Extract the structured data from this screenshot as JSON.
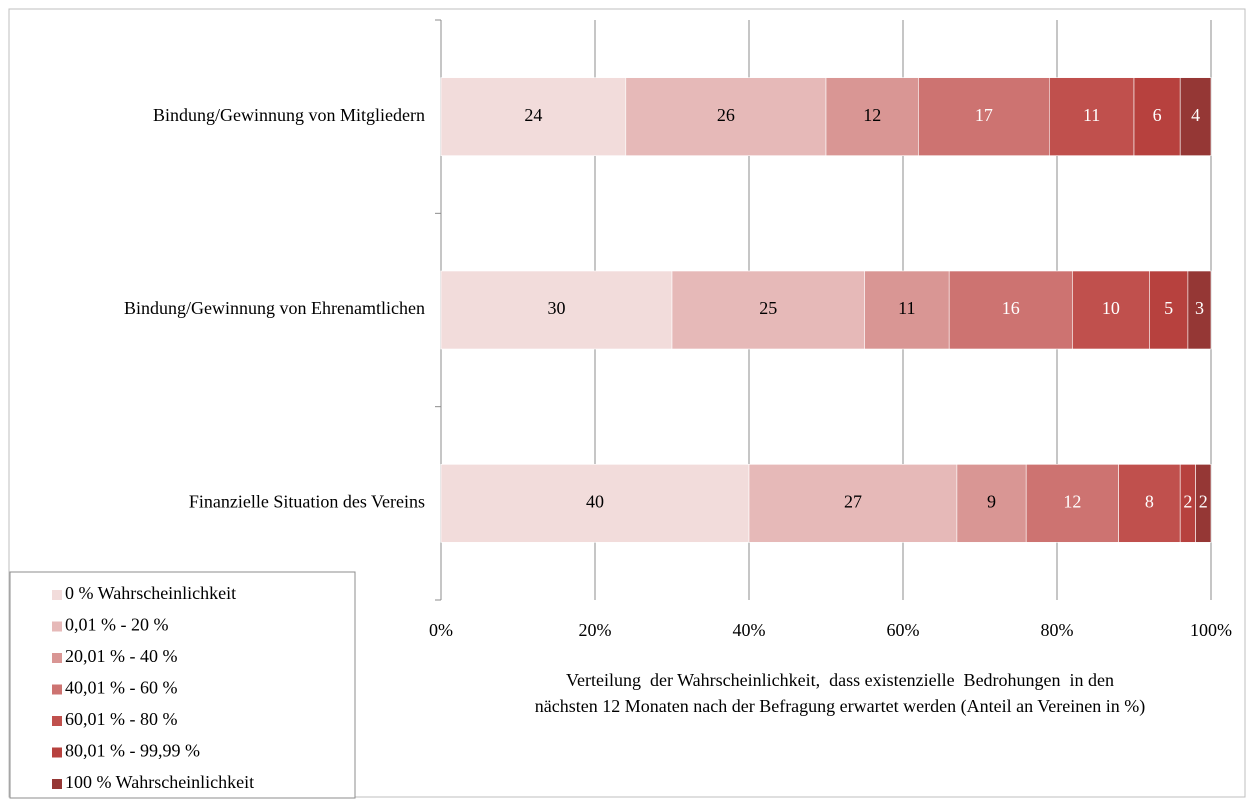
{
  "chart_data": {
    "type": "stacked_barh",
    "categories": [
      "Bindung/Gewinnung von Mitgliedern",
      "Bindung/Gewinnung von Ehrenamtlichen",
      "Finanzielle Situation des Vereins"
    ],
    "series": [
      {
        "name": "0 % Wahrscheinlichkeit",
        "color": "#f2dcdb",
        "label_color": "#000000",
        "values": [
          24,
          30,
          40
        ]
      },
      {
        "name": "0,01 % - 20 %",
        "color": "#e6b9b8",
        "label_color": "#000000",
        "values": [
          26,
          25,
          27
        ]
      },
      {
        "name": "20,01 % - 40 %",
        "color": "#d99694",
        "label_color": "#000000",
        "values": [
          12,
          11,
          9
        ]
      },
      {
        "name": "40,01 % - 60 %",
        "color": "#cd7371",
        "label_color": "#ffffff",
        "values": [
          17,
          16,
          12
        ]
      },
      {
        "name": "60,01 % - 80 %",
        "color": "#c0504d",
        "label_color": "#ffffff",
        "values": [
          11,
          10,
          8
        ]
      },
      {
        "name": "80,01 % - 99,99 %",
        "color": "#b7413e",
        "label_color": "#ffffff",
        "values": [
          6,
          5,
          2
        ]
      },
      {
        "name": "100 % Wahrscheinlichkeit",
        "color": "#953735",
        "label_color": "#ffffff",
        "values": [
          4,
          3,
          2
        ]
      }
    ],
    "xlim": [
      0,
      100
    ],
    "xticks": [
      {
        "value": 0,
        "label": "0%"
      },
      {
        "value": 20,
        "label": "20%"
      },
      {
        "value": 40,
        "label": "40%"
      },
      {
        "value": 60,
        "label": "60%"
      },
      {
        "value": 80,
        "label": "80%"
      },
      {
        "value": 100,
        "label": "100%"
      }
    ],
    "xlabel": [
      "Verteilung  der Wahrscheinlichkeit,  dass existenzielle  Bedrohungen  in den",
      "nächsten 12 Monaten nach der Befragung erwartet werden (Anteil an Vereinen in %)"
    ],
    "grid": true,
    "legend": "lower left"
  }
}
